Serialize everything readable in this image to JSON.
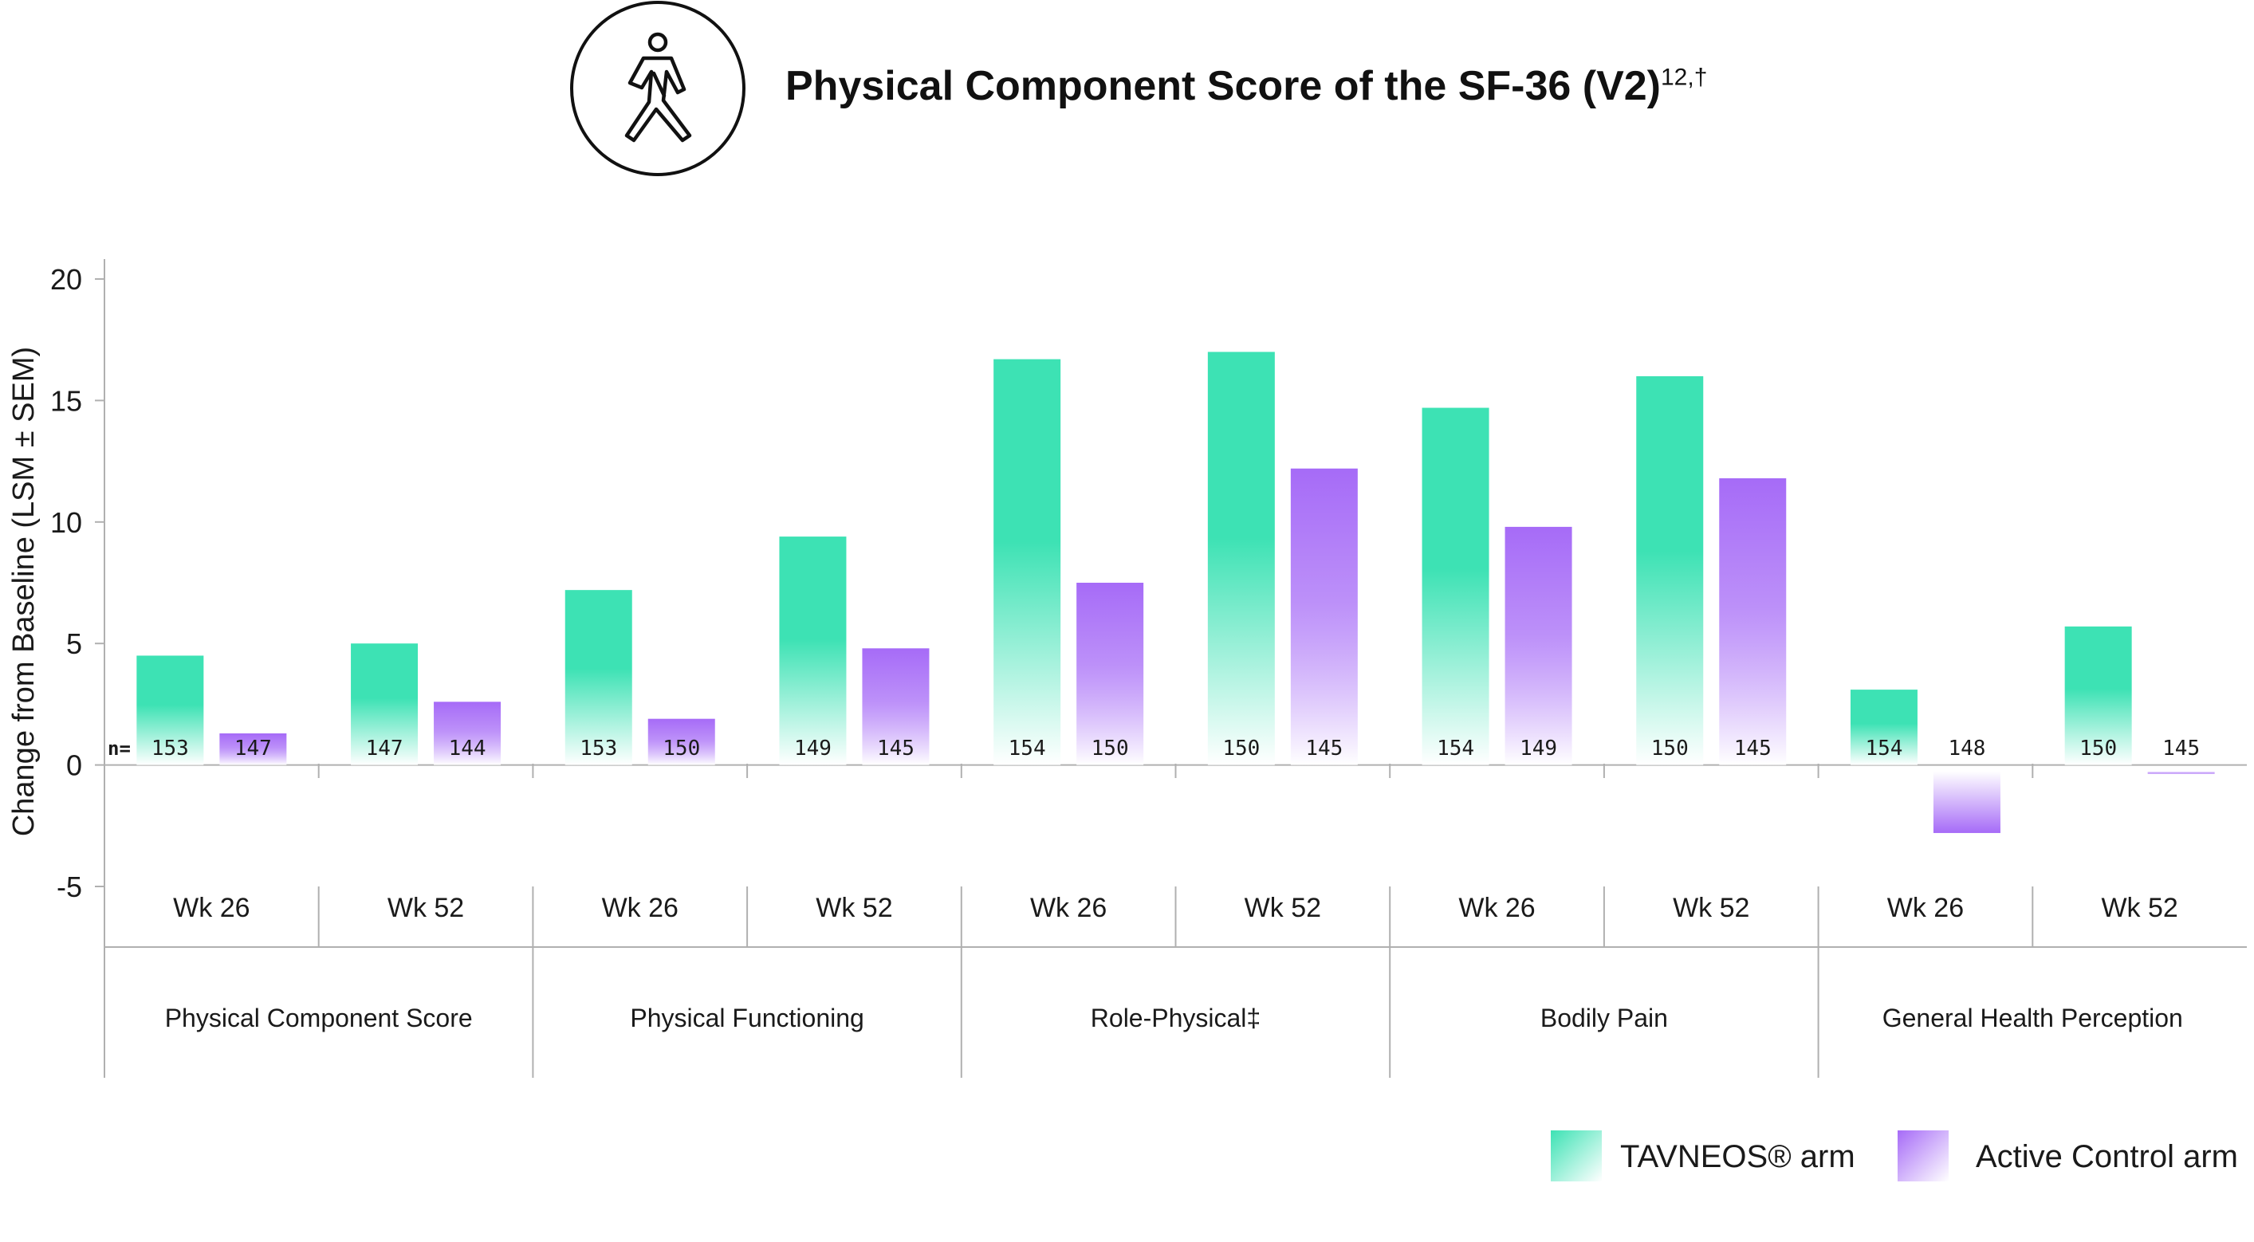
{
  "title": "Physical Component Score of the SF-36 (V2)",
  "title_superscript": "12,†",
  "icon": "walking-person-icon",
  "n_prefix": "n=",
  "colors": {
    "tavneos_top": "#3de2b4",
    "tavneos_bottom": "#ffffff",
    "control_top": "#a66bf7",
    "control_bottom": "#ffffff",
    "axis": "#b0b0b0",
    "text": "#1a1a1a"
  },
  "chart_data": {
    "type": "bar",
    "ylabel": "Change from Baseline (LSM ± SEM)",
    "ylim": [
      -5,
      20
    ],
    "yticks": [
      20,
      15,
      10,
      5,
      0,
      -5
    ],
    "grid": false,
    "legend_position": "bottom-right",
    "groups": [
      {
        "label": "Physical Component Score",
        "timepoints": [
          "Wk 26",
          "Wk 52"
        ]
      },
      {
        "label": "Physical Functioning",
        "timepoints": [
          "Wk 26",
          "Wk 52"
        ]
      },
      {
        "label": "Role-Physical‡",
        "timepoints": [
          "Wk 26",
          "Wk 52"
        ]
      },
      {
        "label": "Bodily Pain",
        "timepoints": [
          "Wk 26",
          "Wk 52"
        ]
      },
      {
        "label": "General Health Perception",
        "timepoints": [
          "Wk 26",
          "Wk 52"
        ]
      }
    ],
    "series": [
      {
        "name": "TAVNEOS® arm",
        "values": [
          4.5,
          5.0,
          7.2,
          9.4,
          16.7,
          17.0,
          14.7,
          16.0,
          3.1,
          5.7
        ],
        "n": [
          "153",
          "147",
          "153",
          "149",
          "154",
          "150",
          "154",
          "150",
          "154",
          "150"
        ]
      },
      {
        "name": "Active Control arm",
        "values": [
          1.3,
          2.6,
          1.9,
          4.8,
          7.5,
          12.2,
          9.8,
          11.8,
          -2.8,
          -0.1
        ],
        "n": [
          "147",
          "144",
          "150",
          "145",
          "150",
          "145",
          "149",
          "145",
          "148",
          "145"
        ]
      }
    ]
  }
}
